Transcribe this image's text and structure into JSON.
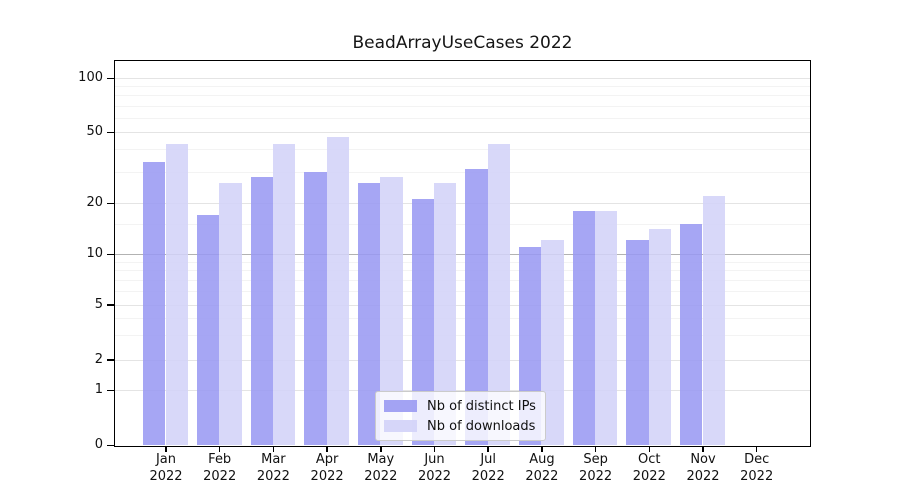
{
  "chart_data": {
    "type": "bar",
    "title": "BeadArrayUseCases 2022",
    "categories": [
      "Jan",
      "Feb",
      "Mar",
      "Apr",
      "May",
      "Jun",
      "Jul",
      "Aug",
      "Sep",
      "Oct",
      "Nov",
      "Dec"
    ],
    "year_label": "2022",
    "series": [
      {
        "name": "Nb of distinct IPs",
        "color": "#9999f2",
        "values": [
          34,
          17,
          28,
          30,
          26,
          21,
          31,
          11,
          18,
          12,
          15,
          0
        ]
      },
      {
        "name": "Nb of downloads",
        "color": "#d2d2f8",
        "values": [
          43,
          26,
          43,
          47,
          28,
          26,
          43,
          12,
          18,
          14,
          22,
          0
        ]
      }
    ],
    "y_axis": {
      "scale": "log-like",
      "ticks": [
        0,
        1,
        2,
        5,
        10,
        20,
        50,
        100
      ],
      "emphasized_gridlines": [
        10
      ],
      "minor_gridlines": [
        3,
        4,
        6,
        7,
        8,
        9,
        15,
        30,
        40,
        60,
        70,
        80,
        90
      ],
      "ylim": [
        0,
        120
      ]
    },
    "xlabel": "",
    "ylabel": "",
    "grid": true,
    "legend": {
      "position": "bottom-center",
      "entries": [
        "Nb of distinct IPs",
        "Nb of downloads"
      ]
    }
  }
}
